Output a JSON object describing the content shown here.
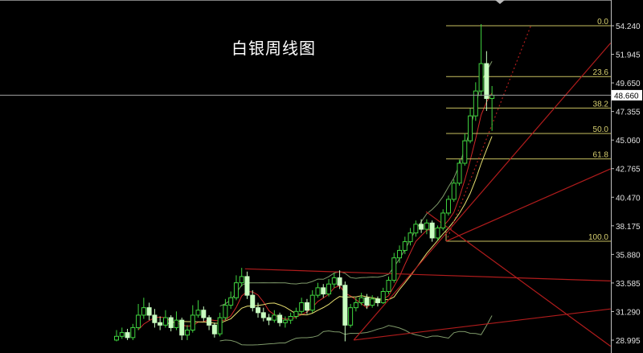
{
  "title": "白银周线图",
  "colors": {
    "background": "#000000",
    "bull_candle": "#3fd43f",
    "bear_candle": "#c8ffc0",
    "ma_fast": "#d02828",
    "ma_slow": "#e8e070",
    "bollinger": "#7f9a6a",
    "trendline": "#b01c1c",
    "fibonacci": "#c8c060",
    "price_line": "#a0a0a0"
  },
  "chart_data": {
    "type": "candlestick",
    "title": "白银周线图",
    "ylim": [
      28.995,
      54.24
    ],
    "y_ticks": [
      "54.240",
      "51.945",
      "49.650",
      "47.355",
      "45.060",
      "42.765",
      "40.470",
      "38.175",
      "35.880",
      "33.585",
      "31.290",
      "28.995"
    ],
    "current_price": "48.660",
    "candles_ohlc": [
      [
        29.0,
        29.8,
        28.9,
        29.3
      ],
      [
        29.3,
        30.0,
        29.1,
        29.6
      ],
      [
        29.6,
        29.9,
        29.0,
        29.2
      ],
      [
        29.2,
        30.3,
        29.0,
        30.0
      ],
      [
        30.0,
        31.9,
        29.8,
        31.0
      ],
      [
        31.0,
        32.4,
        30.7,
        31.6
      ],
      [
        31.6,
        32.0,
        30.6,
        31.0
      ],
      [
        31.0,
        31.5,
        30.0,
        30.4
      ],
      [
        30.4,
        30.9,
        29.8,
        30.2
      ],
      [
        30.2,
        31.4,
        30.0,
        30.8
      ],
      [
        30.8,
        31.0,
        29.7,
        30.0
      ],
      [
        30.0,
        31.3,
        29.8,
        30.6
      ],
      [
        30.6,
        30.8,
        29.0,
        29.4
      ],
      [
        29.4,
        30.2,
        29.0,
        29.8
      ],
      [
        29.8,
        31.8,
        29.6,
        31.0
      ],
      [
        31.0,
        32.2,
        30.8,
        31.4
      ],
      [
        31.4,
        31.7,
        30.5,
        30.8
      ],
      [
        30.8,
        31.0,
        29.8,
        30.2
      ],
      [
        30.2,
        30.4,
        29.2,
        29.5
      ],
      [
        29.5,
        31.2,
        29.3,
        30.8
      ],
      [
        30.8,
        32.3,
        30.6,
        31.8
      ],
      [
        31.8,
        32.9,
        31.5,
        32.4
      ],
      [
        32.4,
        34.2,
        32.2,
        33.6
      ],
      [
        33.6,
        34.8,
        33.3,
        34.1
      ],
      [
        34.1,
        34.5,
        32.3,
        32.6
      ],
      [
        32.6,
        33.0,
        31.3,
        31.6
      ],
      [
        31.6,
        32.0,
        30.8,
        31.2
      ],
      [
        31.2,
        31.6,
        30.5,
        30.8
      ],
      [
        30.8,
        31.1,
        30.2,
        30.6
      ],
      [
        30.6,
        31.4,
        30.4,
        31.0
      ],
      [
        31.0,
        31.2,
        30.1,
        30.4
      ],
      [
        30.4,
        30.9,
        30.0,
        30.6
      ],
      [
        30.6,
        31.2,
        30.3,
        30.9
      ],
      [
        30.9,
        31.6,
        30.7,
        31.3
      ],
      [
        31.3,
        32.4,
        31.1,
        32.0
      ],
      [
        32.0,
        32.3,
        31.1,
        31.4
      ],
      [
        31.4,
        33.0,
        31.2,
        32.6
      ],
      [
        32.6,
        33.6,
        32.4,
        33.2
      ],
      [
        33.2,
        33.5,
        32.4,
        32.7
      ],
      [
        32.7,
        33.9,
        32.5,
        33.5
      ],
      [
        33.5,
        34.4,
        33.2,
        34.0
      ],
      [
        34.0,
        34.6,
        33.1,
        33.4
      ],
      [
        33.4,
        33.7,
        28.9,
        30.2
      ],
      [
        30.2,
        31.9,
        30.0,
        31.6
      ],
      [
        31.6,
        32.4,
        31.3,
        32.0
      ],
      [
        32.0,
        32.8,
        31.8,
        32.4
      ],
      [
        32.4,
        32.7,
        31.5,
        31.8
      ],
      [
        31.8,
        32.6,
        31.6,
        32.3
      ],
      [
        32.3,
        32.5,
        31.7,
        32.0
      ],
      [
        32.0,
        33.2,
        31.9,
        32.9
      ],
      [
        32.9,
        34.1,
        32.7,
        33.8
      ],
      [
        33.8,
        36.0,
        33.6,
        35.6
      ],
      [
        35.6,
        36.6,
        35.2,
        36.2
      ],
      [
        36.2,
        37.3,
        35.9,
        36.9
      ],
      [
        36.9,
        38.0,
        36.6,
        37.6
      ],
      [
        37.6,
        38.6,
        37.3,
        38.3
      ],
      [
        38.3,
        38.7,
        37.6,
        37.9
      ],
      [
        37.9,
        38.7,
        37.5,
        38.4
      ],
      [
        38.4,
        38.6,
        36.9,
        37.2
      ],
      [
        37.2,
        38.2,
        37.0,
        38.0
      ],
      [
        38.0,
        39.5,
        37.8,
        39.2
      ],
      [
        39.2,
        40.6,
        39.0,
        40.3
      ],
      [
        40.3,
        41.9,
        40.1,
        41.6
      ],
      [
        41.6,
        43.5,
        41.4,
        43.2
      ],
      [
        43.2,
        45.6,
        43.0,
        45.0
      ],
      [
        45.0,
        47.6,
        44.8,
        47.0
      ],
      [
        47.0,
        49.7,
        46.6,
        49.0
      ],
      [
        49.0,
        54.37,
        48.6,
        51.2
      ],
      [
        51.2,
        52.2,
        47.4,
        48.4
      ],
      [
        48.4,
        49.4,
        45.8,
        48.66
      ]
    ],
    "fibonacci": {
      "high": 54.24,
      "low": 36.94,
      "levels": [
        {
          "label": "0.0",
          "ratio": 0.0
        },
        {
          "label": "23.6",
          "ratio": 0.236
        },
        {
          "label": "38.2",
          "ratio": 0.382
        },
        {
          "label": "50.0",
          "ratio": 0.5
        },
        {
          "label": "61.8",
          "ratio": 0.618
        },
        {
          "label": "100.0",
          "ratio": 1.0
        }
      ]
    },
    "trendlines": [
      {
        "from": [
          23.6,
          34.72
        ],
        "to": [
          90.8,
          33.75
        ],
        "style": "solid"
      },
      {
        "from": [
          43.6,
          29.0
        ],
        "to": [
          90.8,
          31.5
        ],
        "style": "solid"
      },
      {
        "from": [
          43.6,
          29.0
        ],
        "to": [
          90.8,
          52.85
        ],
        "style": "solid"
      },
      {
        "from": [
          60.6,
          36.94
        ],
        "to": [
          90.8,
          42.75
        ],
        "style": "solid"
      },
      {
        "from": [
          56.9,
          39.3
        ],
        "to": [
          90.8,
          28.5
        ],
        "style": "solid"
      },
      {
        "from": [
          60.6,
          36.94
        ],
        "to": [
          76.1,
          54.2
        ],
        "style": "dotted"
      }
    ]
  }
}
